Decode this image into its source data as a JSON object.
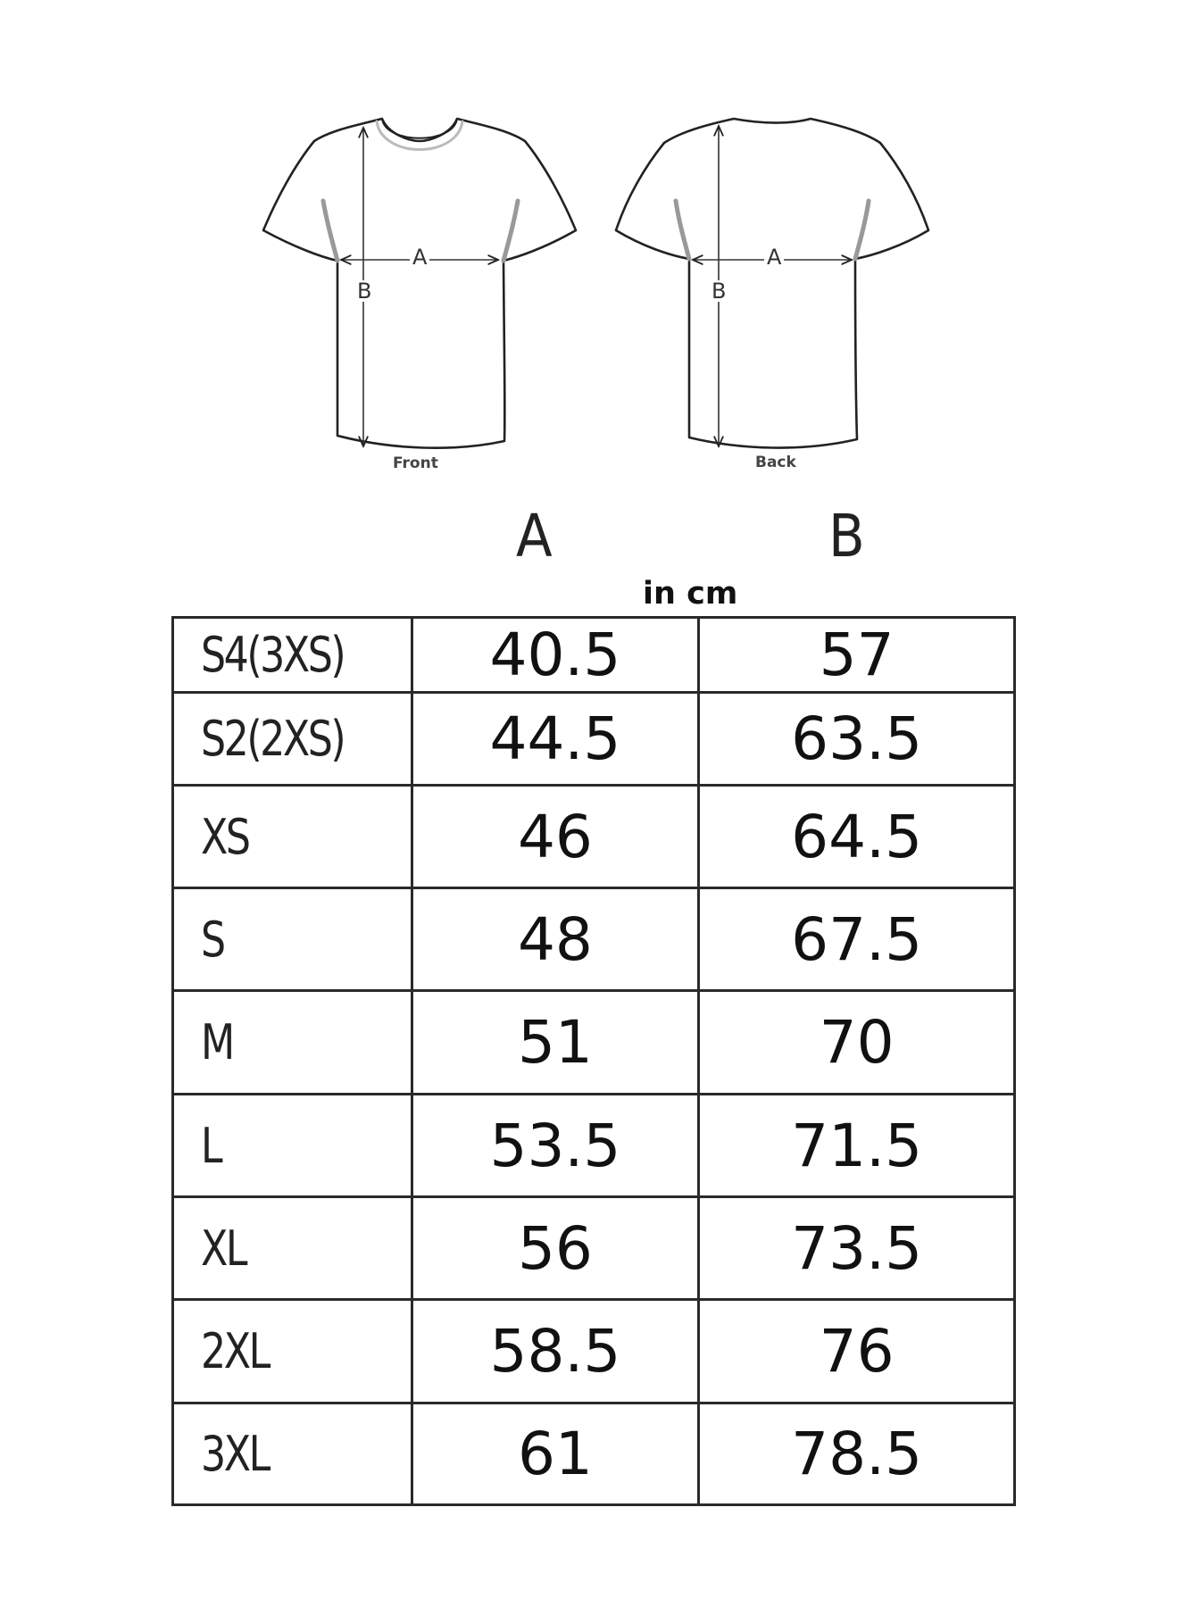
{
  "diagram": {
    "front_label": "Front",
    "back_label": "Back",
    "dim_a": "A",
    "dim_b": "B",
    "line_color": "#222222"
  },
  "table_header": {
    "col_a": "A",
    "col_b": "B",
    "unit": "in cm"
  },
  "rows": [
    {
      "size": "S4(3XS)",
      "a": "40.5",
      "b": "57"
    },
    {
      "size": "S2(2XS)",
      "a": "44.5",
      "b": "63.5"
    },
    {
      "size": "XS",
      "a": "46",
      "b": "64.5"
    },
    {
      "size": "S",
      "a": "48",
      "b": "67.5"
    },
    {
      "size": "M",
      "a": "51",
      "b": "70"
    },
    {
      "size": "L",
      "a": "53.5",
      "b": "71.5"
    },
    {
      "size": "XL",
      "a": "56",
      "b": "73.5"
    },
    {
      "size": "2XL",
      "a": "58.5",
      "b": "76"
    },
    {
      "size": "3XL",
      "a": "61",
      "b": "78.5"
    }
  ]
}
